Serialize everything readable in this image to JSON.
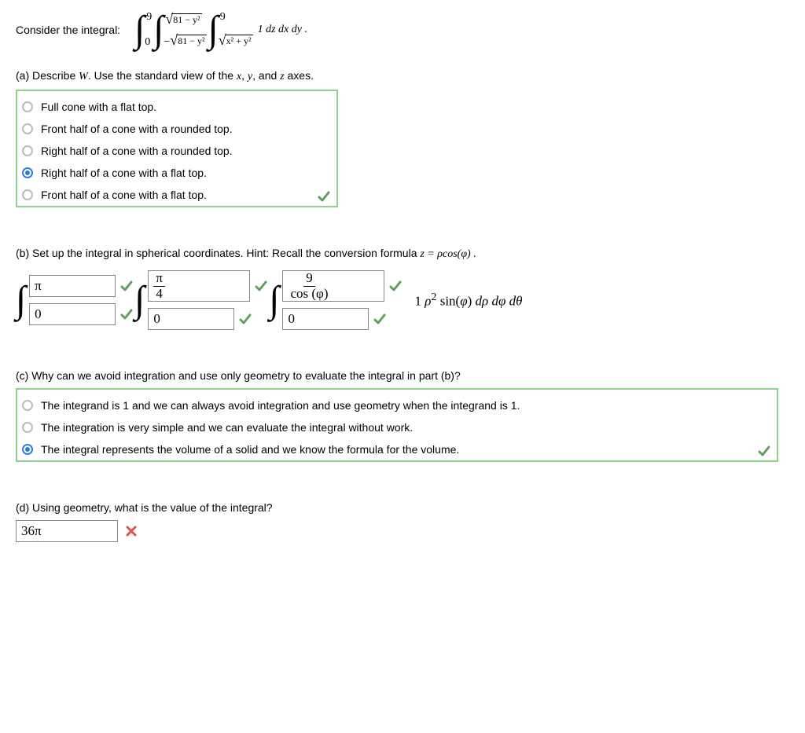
{
  "intro": {
    "prefix": "Consider the integral:",
    "outer_low": "0",
    "outer_high": "9",
    "mid_high_expr": "81 − y²",
    "mid_low_prefix": "−",
    "inner_low_expr": "x² + y²",
    "inner_high": "9",
    "integrand": "1 dz dx dy ."
  },
  "partA": {
    "prompt": "(a) Describe W. Use the standard view of the x, y, and z axes.",
    "options": [
      {
        "label": "Full cone with a flat top.",
        "selected": false
      },
      {
        "label": "Front half of a cone with a rounded top.",
        "selected": false
      },
      {
        "label": "Right half of a cone with a rounded top.",
        "selected": false
      },
      {
        "label": "Right half of a cone with a flat top.",
        "selected": true
      },
      {
        "label": "Front half of a cone with a flat top.",
        "selected": false
      }
    ],
    "correct": true
  },
  "partB": {
    "prompt_prefix": "(b) Set up the integral in spherical coordinates. Hint: Recall the conversion formula ",
    "prompt_formula": "z = ρcos(φ) .",
    "integrals": [
      {
        "upper": "π",
        "upper_type": "plain",
        "lower": "0"
      },
      {
        "upper_num": "π",
        "upper_den": "4",
        "upper_type": "frac",
        "lower": "0"
      },
      {
        "upper_num": "9",
        "upper_den": "cos (φ)",
        "upper_type": "frac",
        "lower": "0"
      }
    ],
    "post": "1 ρ² sin(φ) dρ dφ dθ",
    "all_correct": true
  },
  "partC": {
    "prompt": "(c) Why can we avoid integration and use only geometry to evaluate the integral in part (b)?",
    "options": [
      {
        "label": "The integrand is 1 and we can always avoid integration and use geometry when the integrand is 1.",
        "selected": false
      },
      {
        "label": "The integration is very simple and we can evaluate the integral without work.",
        "selected": false
      },
      {
        "label": "The integral represents the volume of a solid and we know the formula for the volume.",
        "selected": true
      }
    ],
    "correct": true
  },
  "partD": {
    "prompt": "(d) Using geometry, what is the value of the integral?",
    "answer": "36π",
    "correct": false
  },
  "colors": {
    "correct_border": "#8fd18f",
    "check": "#5fa05f",
    "cross": "#d9534f",
    "radio_selected": "#2b7de9"
  }
}
